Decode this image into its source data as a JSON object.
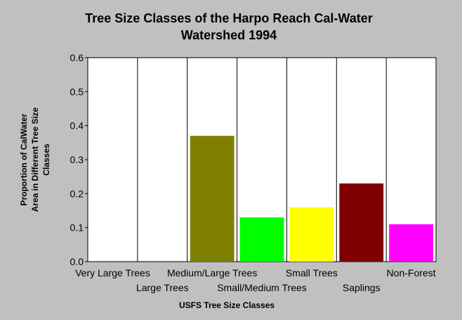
{
  "chart_data": {
    "type": "bar",
    "title": [
      "Tree Size Classes of the Harpo Reach Cal-Water",
      "Watershed 1994"
    ],
    "xlabel": "USFS Tree Size Classes",
    "ylabel": [
      "Proportion of CalWater",
      "Area in Different Tree Size",
      "Classes"
    ],
    "categories": [
      "Very Large Trees",
      "Large Trees",
      "Medium/Large Trees",
      "Small/Medium Trees",
      "Small Trees",
      "Saplings",
      "Non-Forest"
    ],
    "values": [
      0,
      0,
      0.37,
      0.13,
      0.16,
      0.23,
      0.11
    ],
    "colors": [
      "#808000",
      "#808000",
      "#808000",
      "#00ff00",
      "#ffff00",
      "#800000",
      "#ff00ff"
    ],
    "ylim": [
      0,
      0.6
    ],
    "yticks": [
      "0.0",
      "0.1",
      "0.2",
      "0.3",
      "0.4",
      "0.5",
      "0.6"
    ],
    "grid": "vertical separators between categories",
    "legend": "none"
  }
}
